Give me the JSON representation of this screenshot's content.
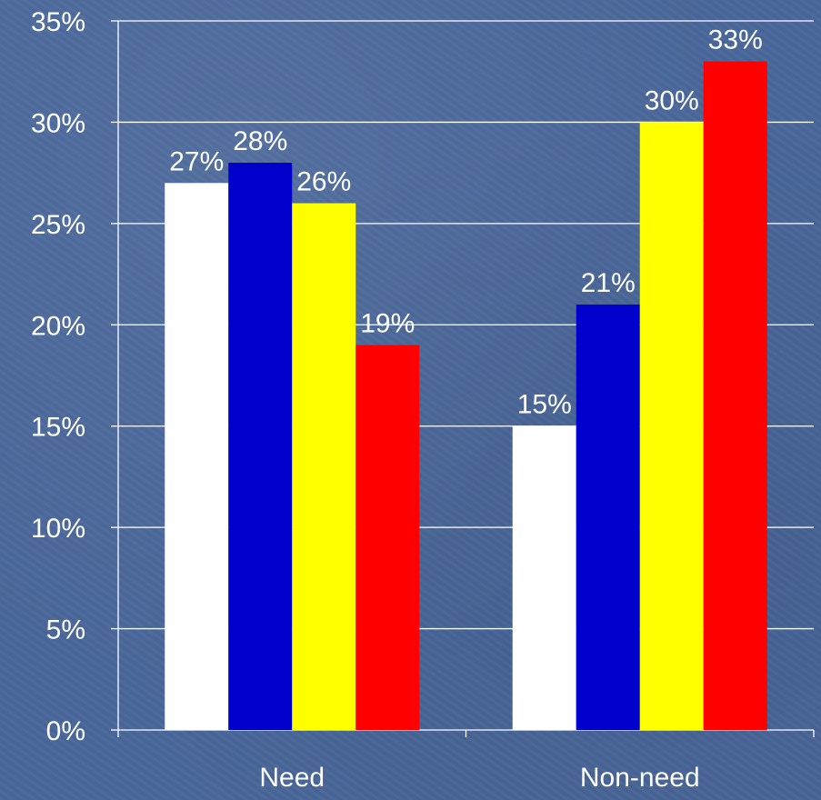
{
  "chart_data": {
    "type": "bar",
    "categories": [
      "Need",
      "Non-need"
    ],
    "series": [
      {
        "color": "#ffffff",
        "values": [
          27,
          15
        ]
      },
      {
        "color": "#0000cc",
        "values": [
          28,
          21
        ]
      },
      {
        "color": "#ffff00",
        "values": [
          26,
          30
        ]
      },
      {
        "color": "#ff0000",
        "values": [
          19,
          33
        ]
      }
    ],
    "data_labels": [
      [
        "27%",
        "15%"
      ],
      [
        "28%",
        "21%"
      ],
      [
        "26%",
        "30%"
      ],
      [
        "19%",
        "33%"
      ]
    ],
    "y_ticks": [
      "0%",
      "5%",
      "10%",
      "15%",
      "20%",
      "25%",
      "30%",
      "35%"
    ],
    "ylim": [
      0,
      35
    ],
    "y_unit": "%",
    "grid": true,
    "legend": false,
    "title": "",
    "xlabel": "",
    "ylabel": ""
  }
}
